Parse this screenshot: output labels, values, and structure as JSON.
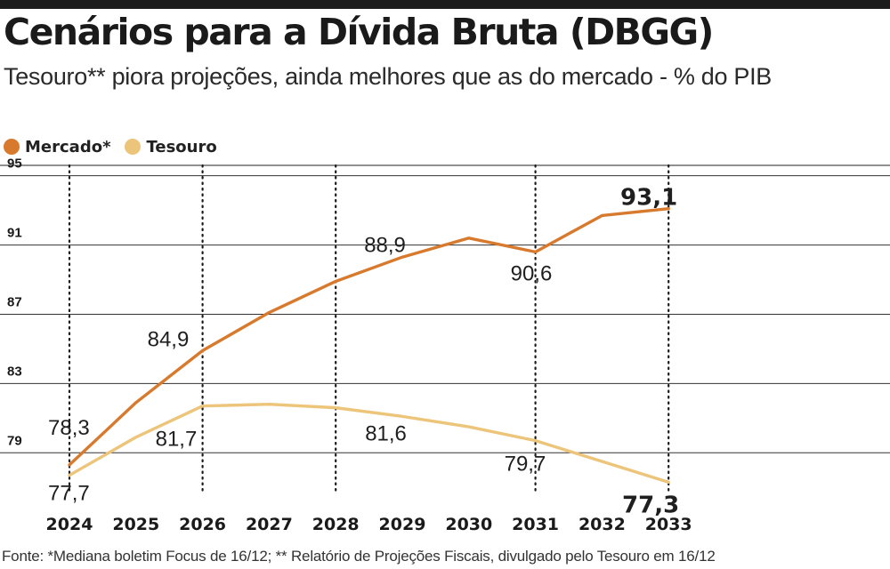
{
  "title": "Cenários para a Dívida Bruta (DBGG)",
  "subtitle": "Tesouro** piora projeções, ainda melhores que as do mercado - % do PIB",
  "legend": [
    {
      "label": "Mercado*",
      "color": "#d87a2e"
    },
    {
      "label": "Tesouro",
      "color": "#ecc57a"
    }
  ],
  "source": "Fonte: *Mediana boletim Focus de 16/12; ** Relatório de Projeções Fiscais, divulgado pelo Tesouro em 16/12",
  "chart_data": {
    "type": "line",
    "x": [
      "2024",
      "2025",
      "2026",
      "2027",
      "2028",
      "2029",
      "2030",
      "2031",
      "2032",
      "2033"
    ],
    "ylim": [
      76.6,
      95.6
    ],
    "yticks": [
      79,
      83,
      87,
      91,
      95
    ],
    "grid": true,
    "legend_position": "top-left",
    "dotted_years": [
      "2024",
      "2026",
      "2028",
      "2031",
      "2033"
    ],
    "series": [
      {
        "name": "Mercado*",
        "color": "#d87a2e",
        "values": [
          78.3,
          81.9,
          84.9,
          87.1,
          88.9,
          90.3,
          91.4,
          90.6,
          92.7,
          93.1
        ],
        "labels": [
          "78,3",
          "",
          "84,9",
          "",
          "88,9",
          "",
          "",
          "90,6",
          "",
          "93,1"
        ]
      },
      {
        "name": "Tesouro",
        "color": "#ecc57a",
        "values": [
          77.7,
          79.9,
          81.7,
          81.8,
          81.6,
          81.1,
          80.5,
          79.7,
          78.5,
          77.3
        ],
        "labels": [
          "77,7",
          "",
          "81,7",
          "",
          "81,6",
          "",
          "",
          "79,7",
          "",
          "77,3"
        ]
      }
    ]
  }
}
